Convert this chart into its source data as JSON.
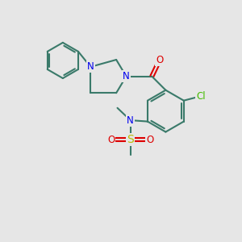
{
  "bg_color": "#e6e6e6",
  "bond_color": "#3a7a6a",
  "bond_width": 1.5,
  "atom_colors": {
    "N": "#0000ee",
    "O": "#dd0000",
    "S": "#bbbb00",
    "Cl": "#44bb00",
    "C": "#3a7a6a"
  },
  "font_size": 8.5,
  "figsize": [
    3.0,
    3.0
  ],
  "dpi": 100
}
